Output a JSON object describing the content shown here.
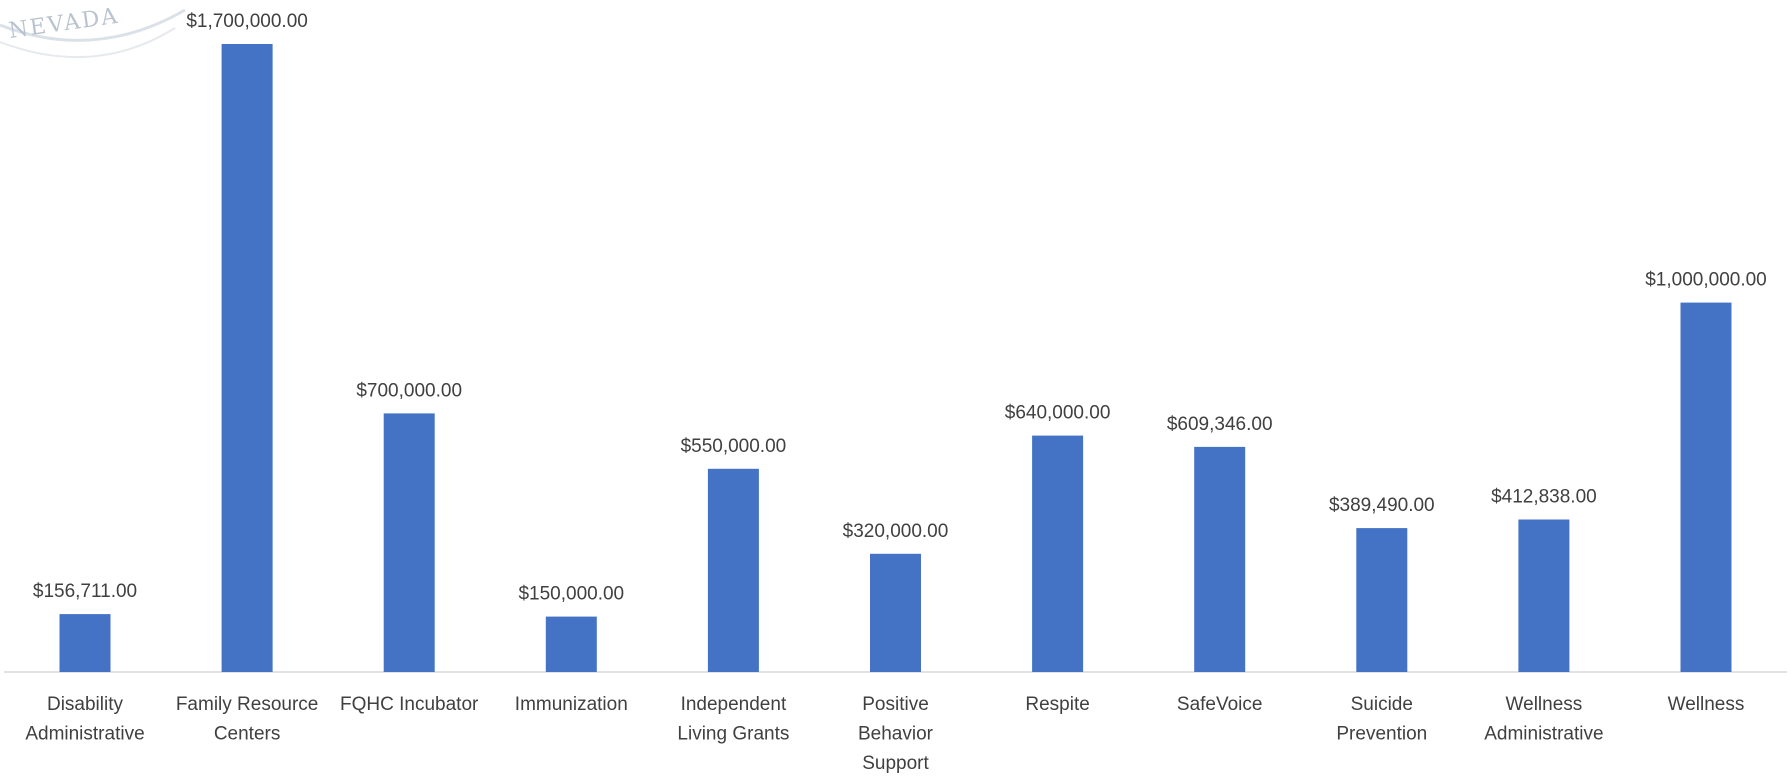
{
  "watermark": {
    "text": "NEVADA"
  },
  "chart_data": {
    "type": "bar",
    "title": "",
    "xlabel": "",
    "ylabel": "",
    "ylim": [
      0,
      1700000
    ],
    "grid": false,
    "legend": "none",
    "bar_color": "#4472c4",
    "categories": [
      [
        "Disability",
        "Administrative"
      ],
      [
        "Family Resource",
        "Centers"
      ],
      [
        "FQHC Incubator"
      ],
      [
        "Immunization"
      ],
      [
        "Independent",
        "Living Grants"
      ],
      [
        "Positive",
        "Behavior",
        "Support"
      ],
      [
        "Respite"
      ],
      [
        "SafeVoice"
      ],
      [
        "Suicide",
        "Prevention"
      ],
      [
        "Wellness",
        "Administrative"
      ],
      [
        "Wellness"
      ]
    ],
    "values": [
      156711,
      1700000,
      700000,
      150000,
      550000,
      320000,
      640000,
      609346,
      389490,
      412838,
      1000000
    ],
    "data_labels": [
      "$156,711.00",
      "$1,700,000.00",
      "$700,000.00",
      "$150,000.00",
      "$550,000.00",
      "$320,000.00",
      "$640,000.00",
      "$609,346.00",
      "$389,490.00",
      "$412,838.00",
      "$1,000,000.00"
    ]
  }
}
